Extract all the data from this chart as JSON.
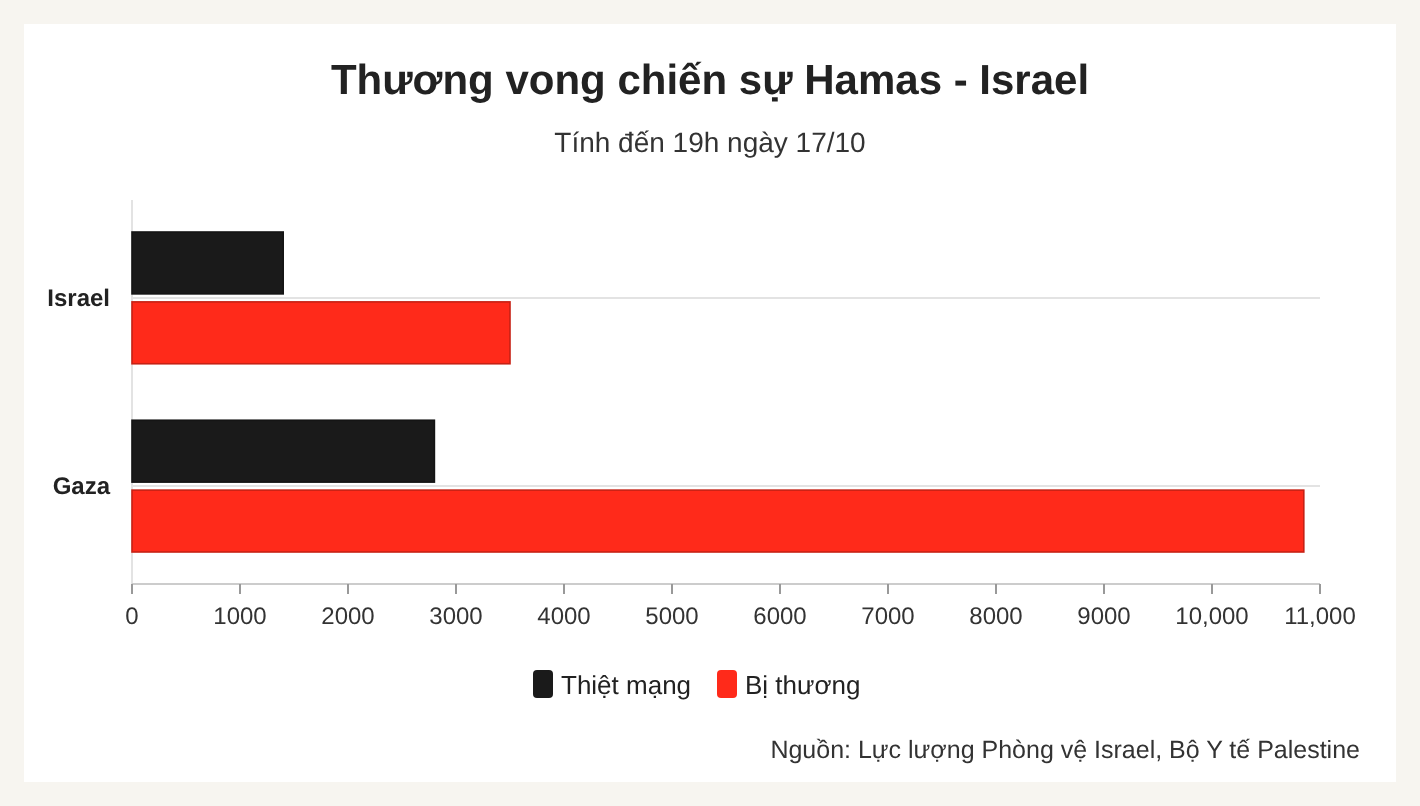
{
  "chart_data": {
    "type": "bar",
    "orientation": "horizontal",
    "title": "Thương vong chiến sự Hamas - Israel",
    "subtitle": "Tính đến 19h ngày 17/10",
    "categories": [
      "Israel",
      "Gaza"
    ],
    "series": [
      {
        "name": "Thiệt mạng",
        "color": "#1a1a1a",
        "values": [
          1400,
          2800
        ]
      },
      {
        "name": "Bị thương",
        "color": "#ff2a1a",
        "values": [
          3500,
          10850
        ]
      }
    ],
    "xlim": [
      0,
      11000
    ],
    "xticks": [
      0,
      1000,
      2000,
      3000,
      4000,
      5000,
      6000,
      7000,
      8000,
      9000,
      {
        "value": 10000,
        "label": "10,000"
      },
      {
        "value": 11000,
        "label": "11,000"
      }
    ],
    "grid": "y",
    "legend": "bottom",
    "annotations": [
      "Nguồn: Lực lượng Phòng vệ Israel, Bộ Y tế Palestine"
    ]
  }
}
